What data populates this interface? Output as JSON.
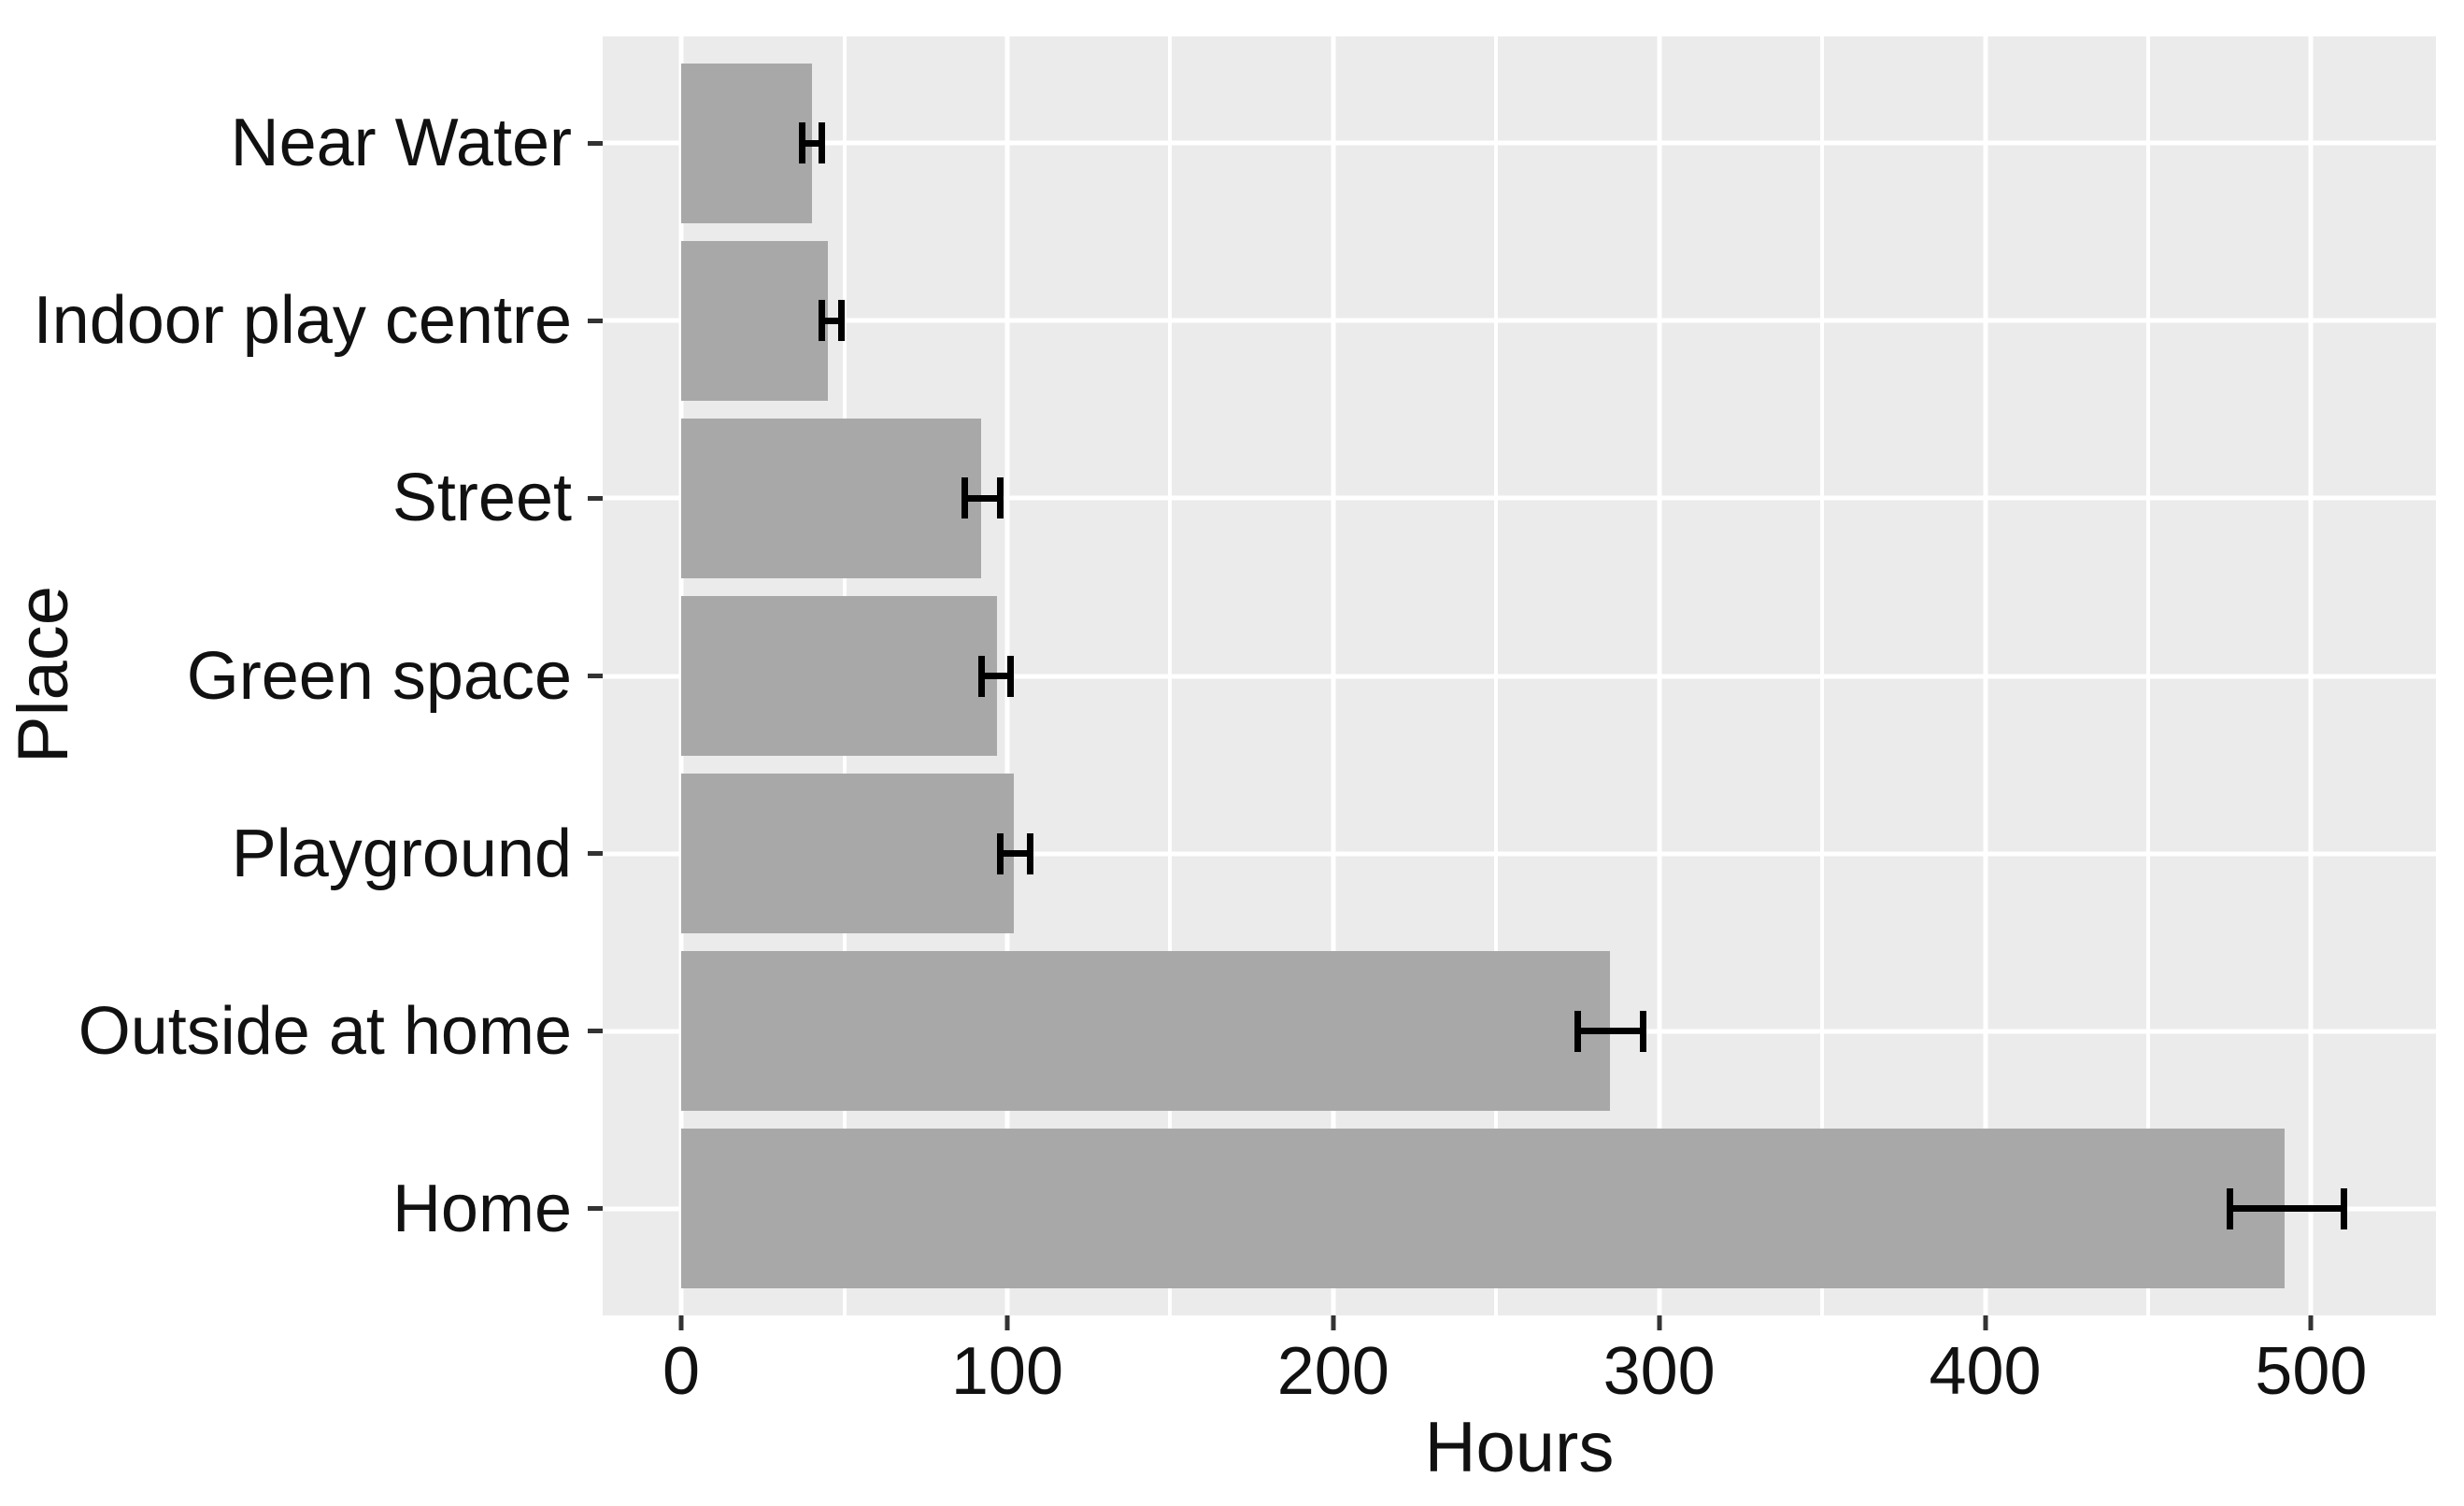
{
  "figure": {
    "background": "#ffffff",
    "panel_background": "#ebebeb",
    "grid_color": "#ffffff",
    "bar_color": "#a8a8a8",
    "error_bar_color": "#000000",
    "tick_color": "#333333",
    "text_color": "#111111"
  },
  "chart_data": {
    "type": "bar",
    "orientation": "horizontal",
    "title": "",
    "xlabel": "Hours",
    "ylabel": "Place",
    "categories_top_to_bottom": [
      "Near Water",
      "Indoor play centre",
      "Street",
      "Green space",
      "Playground",
      "Outside at home",
      "Home"
    ],
    "values": [
      40,
      45,
      92,
      97,
      102,
      285,
      492
    ],
    "error_low": [
      36,
      42,
      86,
      91,
      97,
      274,
      474
    ],
    "error_high": [
      44,
      50,
      99,
      102,
      108,
      296,
      511
    ],
    "x_ticks": [
      0,
      100,
      200,
      300,
      400,
      500
    ],
    "x_tick_labels": [
      "0",
      "100",
      "200",
      "300",
      "400",
      "500"
    ],
    "x_minor_ticks": [
      50,
      150,
      250,
      350,
      450
    ],
    "xlim": [
      0,
      500
    ],
    "x_domain": [
      -24.1,
      538.3
    ],
    "grid": true,
    "legend": false,
    "error_bars": true,
    "bar_width_fraction": 0.9
  }
}
